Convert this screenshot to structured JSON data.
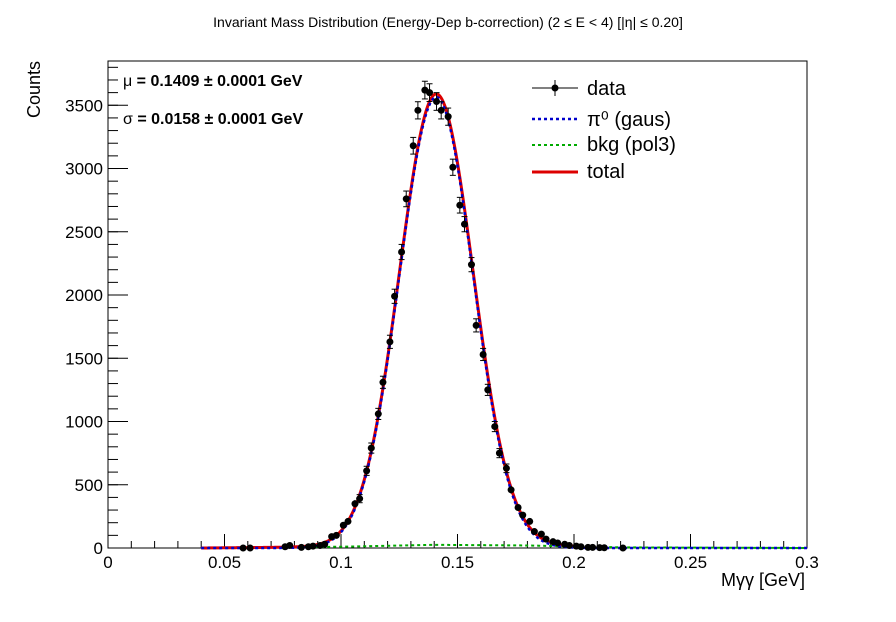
{
  "title": "Invariant Mass Distribution (Energy-Dep b-correction)   (2 ≤ E < 4)   [|η| ≤ 0.20]",
  "xlabel": "Mγγ  [GeV]",
  "ylabel": "Counts",
  "stats": {
    "mu_symbol": "μ",
    "mu_text": " = 0.1409  ± 0.0001 GeV",
    "sigma_symbol": "σ",
    "sigma_text": " = 0.0158  ± 0.0001 GeV"
  },
  "legend": {
    "data": "data",
    "signal": "π⁰ (gaus)",
    "bkg": "bkg (pol3)",
    "total": "total"
  },
  "colors": {
    "data": "#000000",
    "signal": "#0000cc",
    "bkg": "#00aa00",
    "total": "#dd0000"
  },
  "chart_data": {
    "type": "scatter",
    "xlim": [
      0,
      0.3
    ],
    "ylim": [
      0,
      3850
    ],
    "xticks": [
      0,
      0.05,
      0.1,
      0.15,
      0.2,
      0.25,
      0.3
    ],
    "xtick_labels": [
      "0",
      "0.05",
      "0.1",
      "0.15",
      "0.2",
      "0.25",
      "0.3"
    ],
    "yticks": [
      0,
      500,
      1000,
      1500,
      2000,
      2500,
      3000,
      3500
    ],
    "ytick_labels": [
      "0",
      "500",
      "1000",
      "1500",
      "2000",
      "2500",
      "3000",
      "3500"
    ],
    "legend_position": "top-right",
    "grid": false,
    "series": [
      {
        "name": "data",
        "kind": "points-with-errors",
        "x": [
          0.058,
          0.061,
          0.076,
          0.078,
          0.083,
          0.086,
          0.088,
          0.091,
          0.093,
          0.096,
          0.098,
          0.101,
          0.103,
          0.106,
          0.108,
          0.111,
          0.113,
          0.116,
          0.118,
          0.121,
          0.123,
          0.126,
          0.128,
          0.131,
          0.133,
          0.136,
          0.138,
          0.141,
          0.143,
          0.146,
          0.148,
          0.151,
          0.153,
          0.156,
          0.158,
          0.161,
          0.163,
          0.166,
          0.168,
          0.171,
          0.173,
          0.176,
          0.178,
          0.181,
          0.183,
          0.186,
          0.188,
          0.191,
          0.193,
          0.196,
          0.198,
          0.201,
          0.203,
          0.206,
          0.208,
          0.211,
          0.213,
          0.221
        ],
        "y": [
          0,
          0,
          10,
          20,
          5,
          10,
          15,
          20,
          30,
          90,
          100,
          180,
          210,
          350,
          390,
          610,
          790,
          1060,
          1310,
          1630,
          1990,
          2340,
          2760,
          3180,
          3460,
          3620,
          3600,
          3530,
          3460,
          3410,
          3010,
          2710,
          2560,
          2240,
          1760,
          1530,
          1250,
          960,
          750,
          630,
          460,
          320,
          260,
          210,
          130,
          110,
          70,
          50,
          40,
          30,
          20,
          15,
          10,
          5,
          5,
          3,
          2,
          0
        ],
        "yerr": [
          5,
          5,
          10,
          12,
          8,
          10,
          12,
          14,
          16,
          20,
          20,
          24,
          26,
          30,
          32,
          36,
          40,
          44,
          48,
          52,
          56,
          60,
          62,
          66,
          68,
          70,
          70,
          70,
          68,
          68,
          64,
          62,
          60,
          56,
          52,
          48,
          44,
          40,
          36,
          34,
          30,
          26,
          24,
          22,
          18,
          16,
          14,
          12,
          10,
          10,
          8,
          8,
          6,
          5,
          5,
          4,
          4,
          4
        ]
      },
      {
        "name": "π⁰ (gaus)",
        "kind": "gaussian",
        "amplitude": 3565,
        "mean": 0.1409,
        "sigma": 0.0158,
        "range": [
          0.04,
          0.3
        ]
      },
      {
        "name": "bkg (pol3)",
        "kind": "polynomial",
        "points": [
          [
            0.04,
            0
          ],
          [
            0.1,
            10
          ],
          [
            0.14,
            25
          ],
          [
            0.18,
            20
          ],
          [
            0.22,
            5
          ],
          [
            0.3,
            0
          ]
        ],
        "range": [
          0.04,
          0.3
        ]
      },
      {
        "name": "total",
        "kind": "sum",
        "range": [
          0.04,
          0.2
        ]
      }
    ]
  }
}
